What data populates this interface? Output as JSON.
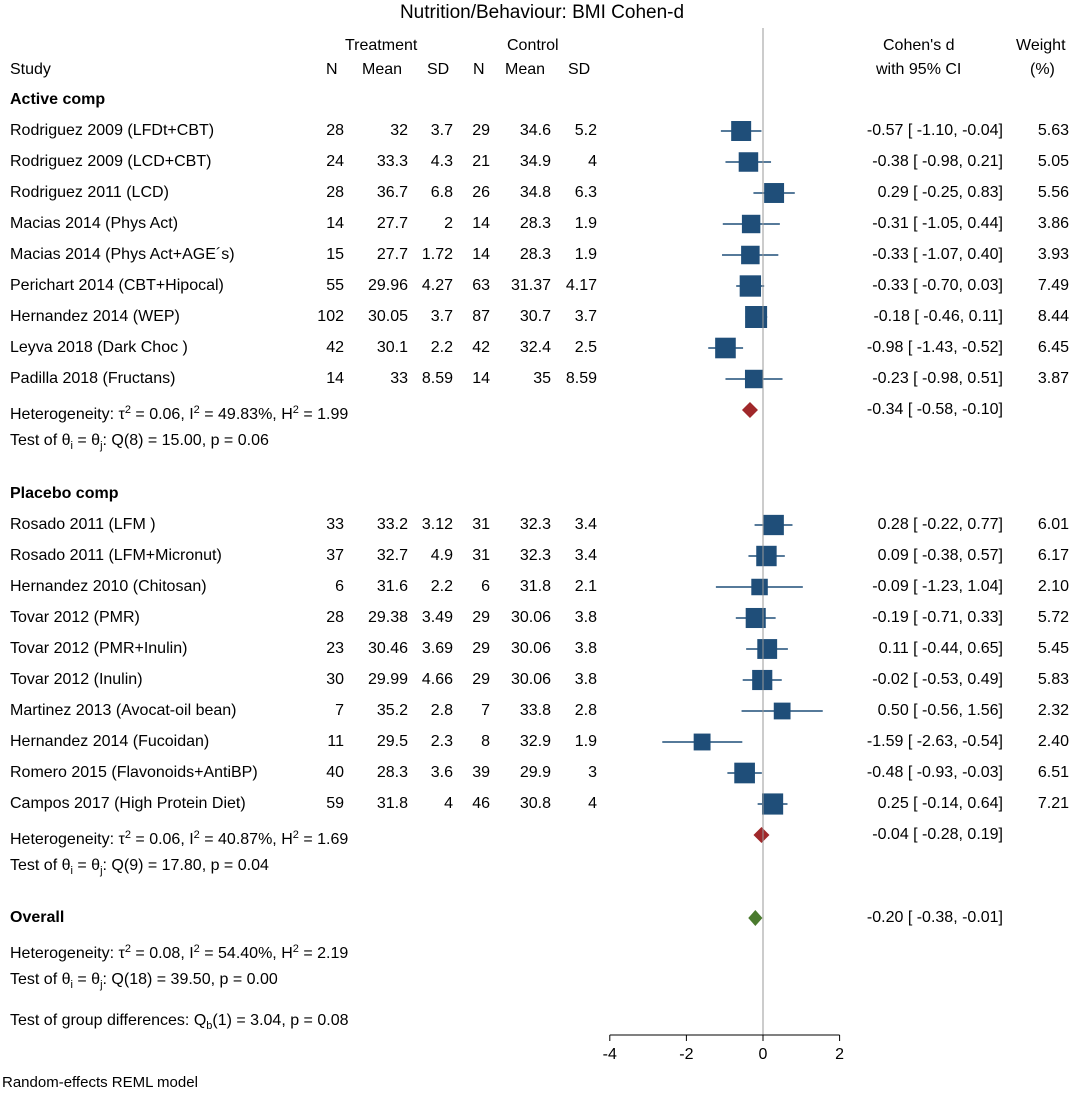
{
  "chart_data": {
    "type": "forest",
    "title": "Nutrition/Behaviour:  BMI Cohen-d",
    "headers": {
      "study": "Study",
      "treatment": "Treatment",
      "control": "Control",
      "n": "N",
      "mean": "Mean",
      "sd": "SD",
      "effect_top": "Cohen's d",
      "effect_bottom": "with 95% CI",
      "weight_top": "Weight",
      "weight_bottom": "(%)"
    },
    "groups": [
      {
        "label": "Active comp",
        "studies": [
          {
            "study": "Rodriguez 2009 (LFDt+CBT)",
            "tn": "28",
            "tmean": "32",
            "tsd": "3.7",
            "cn": "29",
            "cmean": "34.6",
            "csd": "5.2",
            "d": -0.57,
            "lo": -1.1,
            "hi": -0.04,
            "ci": "-0.57 [ -1.10, -0.04]",
            "weight": "5.63"
          },
          {
            "study": "Rodriguez 2009 (LCD+CBT)",
            "tn": "24",
            "tmean": "33.3",
            "tsd": "4.3",
            "cn": "21",
            "cmean": "34.9",
            "csd": "4",
            "d": -0.38,
            "lo": -0.98,
            "hi": 0.21,
            "ci": "-0.38 [ -0.98,  0.21]",
            "weight": "5.05"
          },
          {
            "study": "Rodriguez 2011 (LCD)",
            "tn": "28",
            "tmean": "36.7",
            "tsd": "6.8",
            "cn": "26",
            "cmean": "34.8",
            "csd": "6.3",
            "d": 0.29,
            "lo": -0.25,
            "hi": 0.83,
            "ci": "0.29 [ -0.25,  0.83]",
            "weight": "5.56"
          },
          {
            "study": "Macias 2014 (Phys Act)",
            "tn": "14",
            "tmean": "27.7",
            "tsd": "2",
            "cn": "14",
            "cmean": "28.3",
            "csd": "1.9",
            "d": -0.31,
            "lo": -1.05,
            "hi": 0.44,
            "ci": "-0.31 [ -1.05,  0.44]",
            "weight": "3.86"
          },
          {
            "study": "Macias 2014 (Phys Act+AGE´s)",
            "tn": "15",
            "tmean": "27.7",
            "tsd": "1.72",
            "cn": "14",
            "cmean": "28.3",
            "csd": "1.9",
            "d": -0.33,
            "lo": -1.07,
            "hi": 0.4,
            "ci": "-0.33 [ -1.07,  0.40]",
            "weight": "3.93"
          },
          {
            "study": "Perichart 2014 (CBT+Hipocal)",
            "tn": "55",
            "tmean": "29.96",
            "tsd": "4.27",
            "cn": "63",
            "cmean": "31.37",
            "csd": "4.17",
            "d": -0.33,
            "lo": -0.7,
            "hi": 0.03,
            "ci": "-0.33 [ -0.70,  0.03]",
            "weight": "7.49"
          },
          {
            "study": "Hernandez 2014 (WEP)",
            "tn": "102",
            "tmean": "30.05",
            "tsd": "3.7",
            "cn": "87",
            "cmean": "30.7",
            "csd": "3.7",
            "d": -0.18,
            "lo": -0.46,
            "hi": 0.11,
            "ci": "-0.18 [ -0.46,  0.11]",
            "weight": "8.44"
          },
          {
            "study": "Leyva 2018 (Dark Choc )",
            "tn": "42",
            "tmean": "30.1",
            "tsd": "2.2",
            "cn": "42",
            "cmean": "32.4",
            "csd": "2.5",
            "d": -0.98,
            "lo": -1.43,
            "hi": -0.52,
            "ci": "-0.98 [ -1.43, -0.52]",
            "weight": "6.45"
          },
          {
            "study": "Padilla 2018 (Fructans)",
            "tn": "14",
            "tmean": "33",
            "tsd": "8.59",
            "cn": "14",
            "cmean": "35",
            "csd": "8.59",
            "d": -0.23,
            "lo": -0.98,
            "hi": 0.51,
            "ci": "-0.23 [ -0.98,  0.51]",
            "weight": "3.87"
          }
        ],
        "pooled": {
          "d": -0.34,
          "lo": -0.58,
          "hi": -0.1,
          "ci": "-0.34 [ -0.58, -0.10]"
        },
        "het_a": "Heterogeneity: τ",
        "het_b": " = 0.06, I",
        "het_c": " = 49.83%, H",
        "het_d": " = 1.99",
        "test_a": "Test of θ",
        "test_b": " = θ",
        "test_c": ": Q(8) = 15.00, p = 0.06"
      },
      {
        "label": "Placebo comp",
        "studies": [
          {
            "study": "Rosado 2011 (LFM  )",
            "tn": "33",
            "tmean": "33.2",
            "tsd": "3.12",
            "cn": "31",
            "cmean": "32.3",
            "csd": "3.4",
            "d": 0.28,
            "lo": -0.22,
            "hi": 0.77,
            "ci": "0.28 [ -0.22,  0.77]",
            "weight": "6.01"
          },
          {
            "study": "Rosado 2011 (LFM+Micronut)",
            "tn": "37",
            "tmean": "32.7",
            "tsd": "4.9",
            "cn": "31",
            "cmean": "32.3",
            "csd": "3.4",
            "d": 0.09,
            "lo": -0.38,
            "hi": 0.57,
            "ci": "0.09 [ -0.38,  0.57]",
            "weight": "6.17"
          },
          {
            "study": "Hernandez 2010 (Chitosan)",
            "tn": "6",
            "tmean": "31.6",
            "tsd": "2.2",
            "cn": "6",
            "cmean": "31.8",
            "csd": "2.1",
            "d": -0.09,
            "lo": -1.23,
            "hi": 1.04,
            "ci": "-0.09 [ -1.23,  1.04]",
            "weight": "2.10"
          },
          {
            "study": "Tovar 2012 (PMR)",
            "tn": "28",
            "tmean": "29.38",
            "tsd": "3.49",
            "cn": "29",
            "cmean": "30.06",
            "csd": "3.8",
            "d": -0.19,
            "lo": -0.71,
            "hi": 0.33,
            "ci": "-0.19 [ -0.71,  0.33]",
            "weight": "5.72"
          },
          {
            "study": "Tovar 2012 (PMR+Inulin)",
            "tn": "23",
            "tmean": "30.46",
            "tsd": "3.69",
            "cn": "29",
            "cmean": "30.06",
            "csd": "3.8",
            "d": 0.11,
            "lo": -0.44,
            "hi": 0.65,
            "ci": "0.11 [ -0.44,  0.65]",
            "weight": "5.45"
          },
          {
            "study": "Tovar 2012 (Inulin)",
            "tn": "30",
            "tmean": "29.99",
            "tsd": "4.66",
            "cn": "29",
            "cmean": "30.06",
            "csd": "3.8",
            "d": -0.02,
            "lo": -0.53,
            "hi": 0.49,
            "ci": "-0.02 [ -0.53,  0.49]",
            "weight": "5.83"
          },
          {
            "study": "Martinez 2013 (Avocat-oil bean)",
            "tn": "7",
            "tmean": "35.2",
            "tsd": "2.8",
            "cn": "7",
            "cmean": "33.8",
            "csd": "2.8",
            "d": 0.5,
            "lo": -0.56,
            "hi": 1.56,
            "ci": "0.50 [ -0.56,  1.56]",
            "weight": "2.32"
          },
          {
            "study": "Hernandez 2014 (Fucoidan)",
            "tn": "11",
            "tmean": "29.5",
            "tsd": "2.3",
            "cn": "8",
            "cmean": "32.9",
            "csd": "1.9",
            "d": -1.59,
            "lo": -2.63,
            "hi": -0.54,
            "ci": "-1.59 [ -2.63, -0.54]",
            "weight": "2.40"
          },
          {
            "study": "Romero 2015 (Flavonoids+AntiBP)",
            "tn": "40",
            "tmean": "28.3",
            "tsd": "3.6",
            "cn": "39",
            "cmean": "29.9",
            "csd": "3",
            "d": -0.48,
            "lo": -0.93,
            "hi": -0.03,
            "ci": "-0.48 [ -0.93, -0.03]",
            "weight": "6.51"
          },
          {
            "study": "Campos 2017 (High Protein Diet)",
            "tn": "59",
            "tmean": "31.8",
            "tsd": "4",
            "cn": "46",
            "cmean": "30.8",
            "csd": "4",
            "d": 0.25,
            "lo": -0.14,
            "hi": 0.64,
            "ci": "0.25 [ -0.14,  0.64]",
            "weight": "7.21"
          }
        ],
        "pooled": {
          "d": -0.04,
          "lo": -0.28,
          "hi": 0.19,
          "ci": "-0.04 [ -0.28,  0.19]"
        },
        "het_a": "Heterogeneity: τ",
        "het_b": " = 0.06, I",
        "het_c": " = 40.87%, H",
        "het_d": " = 1.69",
        "test_a": "Test of θ",
        "test_b": " = θ",
        "test_c": ": Q(9) = 17.80, p = 0.04"
      }
    ],
    "overall": {
      "label": "Overall",
      "d": -0.2,
      "lo": -0.38,
      "hi": -0.01,
      "ci": "-0.20 [ -0.38, -0.01]",
      "het_a": "Heterogeneity: τ",
      "het_b": " = 0.08, I",
      "het_c": " = 54.40%, H",
      "het_d": " = 2.19",
      "test_a": "Test of θ",
      "test_b": " = θ",
      "test_c": ": Q(18) = 39.50, p = 0.00",
      "group_a": "Test of group differences: Q",
      "group_b": "(1) = 3.04, p = 0.08"
    },
    "sup": {
      "two": "2",
      "i": "i",
      "j": "j",
      "b": "b"
    },
    "x_ticks": [
      "-4",
      "-2",
      "0",
      "2"
    ],
    "xlim": [
      -4,
      2
    ],
    "footnote": "Random-effects REML model",
    "colors": {
      "marker": "#1f4e79",
      "pooled_group": "#a0282a",
      "pooled_overall": "#4a7a2e",
      "line": "#1f4e79"
    }
  }
}
